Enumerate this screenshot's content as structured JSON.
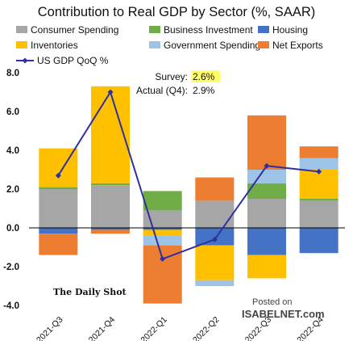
{
  "chart_data": {
    "type": "bar",
    "stacked": true,
    "title": "Contribution to Real GDP by Sector (%, SAAR)",
    "categories": [
      "2021-Q3",
      "2021-Q4",
      "2022-Q1",
      "2022-Q2",
      "2022-Q3",
      "2022-Q4"
    ],
    "ylim": [
      -4,
      8
    ],
    "yticks": [
      "-4.0",
      "-2.0",
      "0.0",
      "2.0",
      "4.0",
      "6.0",
      "8.0"
    ],
    "grid": false,
    "legend_position": "top",
    "series": [
      {
        "name": "Consumer Spending",
        "color": "#a6a6a6",
        "values": [
          2.0,
          2.2,
          0.9,
          1.4,
          1.5,
          1.4
        ]
      },
      {
        "name": "Business Investment",
        "color": "#70ad47",
        "values": [
          0.1,
          0.1,
          1.0,
          0.0,
          0.8,
          0.1
        ]
      },
      {
        "name": "Housing",
        "color": "#4472c4",
        "values": [
          -0.3,
          -0.1,
          -0.1,
          -0.9,
          -1.4,
          -1.3
        ]
      },
      {
        "name": "Inventories",
        "color": "#ffc000",
        "values": [
          2.0,
          5.0,
          -0.3,
          -1.8,
          -1.2,
          1.5
        ]
      },
      {
        "name": "Government Spending",
        "color": "#9dc3e6",
        "values": [
          0.0,
          0.0,
          -0.5,
          -0.3,
          0.7,
          0.6
        ]
      },
      {
        "name": "Net Exports",
        "color": "#ed7d31",
        "values": [
          -1.1,
          -0.2,
          -3.0,
          1.2,
          2.8,
          0.6
        ]
      }
    ],
    "line": {
      "name": "US GDP QoQ %",
      "color": "#3030a0",
      "values": [
        2.7,
        7.0,
        -1.6,
        -0.6,
        3.2,
        2.9
      ]
    },
    "annotations": {
      "survey_label": "Survey:",
      "survey_value": "2.6%",
      "actual_label": "Actual (Q4):",
      "actual_value": "2.9%"
    }
  },
  "source": "The Daily Shot",
  "watermark": {
    "line1": "Posted on",
    "line2": "ISABELNET.com"
  }
}
